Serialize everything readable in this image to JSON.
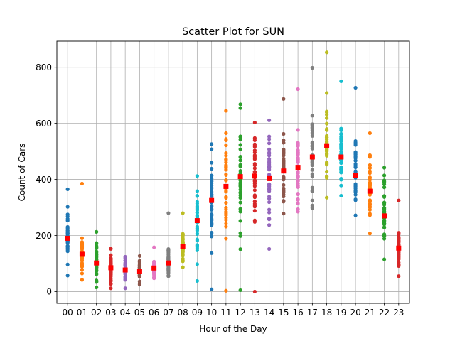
{
  "chart_data": {
    "type": "scatter",
    "title": "Scatter Plot for SUN",
    "xlabel": "Hour of the Day",
    "ylabel": "Count of Cars",
    "categories": [
      "00",
      "01",
      "02",
      "03",
      "04",
      "05",
      "06",
      "07",
      "08",
      "09",
      "10",
      "11",
      "12",
      "13",
      "14",
      "15",
      "16",
      "17",
      "18",
      "19",
      "20",
      "21",
      "22",
      "23"
    ],
    "ylim": [
      -42,
      893
    ],
    "yticks": [
      0,
      200,
      400,
      600,
      800
    ],
    "grid": true,
    "colors": {
      "cycle": [
        "#1f77b4",
        "#ff7f0e",
        "#2ca02c",
        "#d62728",
        "#9467bd",
        "#8c564b",
        "#e377c2",
        "#7f7f7f",
        "#bcbd22",
        "#17becf"
      ],
      "mean_marker": "#ff0000"
    },
    "series": [
      {
        "category": "00",
        "min": 57,
        "max": 365,
        "mean": 190
      },
      {
        "category": "01",
        "min": 42,
        "max": 385,
        "mean": 133
      },
      {
        "category": "02",
        "min": 15,
        "max": 213,
        "mean": 102
      },
      {
        "category": "03",
        "min": 12,
        "max": 153,
        "mean": 85
      },
      {
        "category": "04",
        "min": 12,
        "max": 124,
        "mean": 77
      },
      {
        "category": "05",
        "min": 25,
        "max": 127,
        "mean": 71
      },
      {
        "category": "06",
        "min": 48,
        "max": 158,
        "mean": 84
      },
      {
        "category": "07",
        "min": 55,
        "max": 280,
        "mean": 102
      },
      {
        "category": "08",
        "min": 87,
        "max": 280,
        "mean": 160
      },
      {
        "category": "09",
        "min": 38,
        "max": 412,
        "mean": 253
      },
      {
        "category": "10",
        "min": 8,
        "max": 526,
        "mean": 325
      },
      {
        "category": "11",
        "min": 3,
        "max": 645,
        "mean": 375
      },
      {
        "category": "12",
        "min": 5,
        "max": 668,
        "mean": 410
      },
      {
        "category": "13",
        "min": 0,
        "max": 603,
        "mean": 412
      },
      {
        "category": "14",
        "min": 152,
        "max": 611,
        "mean": 403
      },
      {
        "category": "15",
        "min": 278,
        "max": 687,
        "mean": 430
      },
      {
        "category": "16",
        "min": 285,
        "max": 722,
        "mean": 443
      },
      {
        "category": "17",
        "min": 298,
        "max": 798,
        "mean": 480
      },
      {
        "category": "18",
        "min": 335,
        "max": 853,
        "mean": 520
      },
      {
        "category": "19",
        "min": 342,
        "max": 750,
        "mean": 480
      },
      {
        "category": "20",
        "min": 272,
        "max": 727,
        "mean": 413
      },
      {
        "category": "21",
        "min": 207,
        "max": 565,
        "mean": 358
      },
      {
        "category": "22",
        "min": 115,
        "max": 442,
        "mean": 270
      },
      {
        "category": "23",
        "min": 55,
        "max": 325,
        "mean": 155
      }
    ]
  }
}
